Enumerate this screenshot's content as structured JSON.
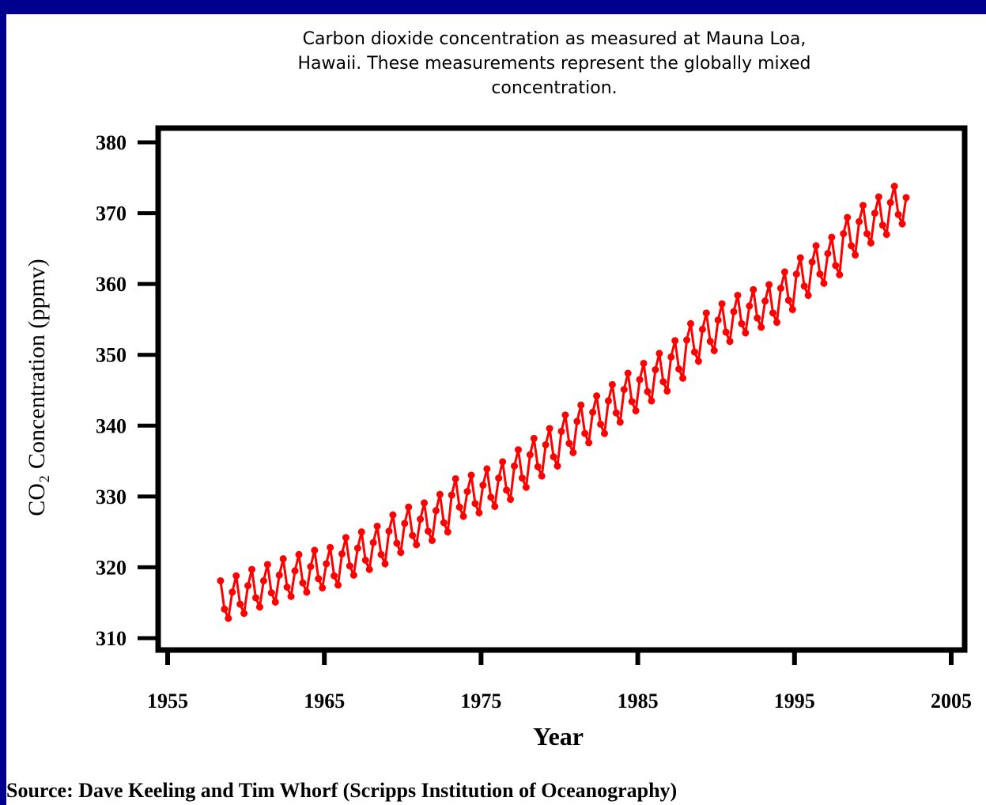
{
  "chart_data": {
    "type": "line",
    "title": "Carbon dioxide concentration as measured at Mauna Loa, Hawaii. These measurements represent the globally mixed concentration.",
    "x_label": "Year",
    "y_label": "CO₂ Concentration (ppmv)",
    "source": "Source: Dave Keeling and Tim Whorf (Scripps Institution of Oceanography)",
    "xlim": [
      1955,
      2005
    ],
    "xticks": [
      1955,
      1965,
      1975,
      1985,
      1995,
      2005
    ],
    "ylim": [
      310,
      380
    ],
    "yticks": [
      310,
      320,
      330,
      340,
      350,
      360,
      370,
      380
    ],
    "series": [
      {
        "color": "#ff0000",
        "x": [
          1958.375,
          1958.625,
          1958.875,
          1959.125,
          1959.375,
          1959.625,
          1959.875,
          1960.125,
          1960.375,
          1960.625,
          1960.875,
          1961.125,
          1961.375,
          1961.625,
          1961.875,
          1962.125,
          1962.375,
          1962.625,
          1962.875,
          1963.125,
          1963.375,
          1963.625,
          1963.875,
          1964.125,
          1964.375,
          1964.625,
          1964.875,
          1965.125,
          1965.375,
          1965.625,
          1965.875,
          1966.125,
          1966.375,
          1966.625,
          1966.875,
          1967.125,
          1967.375,
          1967.625,
          1967.875,
          1968.125,
          1968.375,
          1968.625,
          1968.875,
          1969.125,
          1969.375,
          1969.625,
          1969.875,
          1970.125,
          1970.375,
          1970.625,
          1970.875,
          1971.125,
          1971.375,
          1971.625,
          1971.875,
          1972.125,
          1972.375,
          1972.625,
          1972.875,
          1973.125,
          1973.375,
          1973.625,
          1973.875,
          1974.125,
          1974.375,
          1974.625,
          1974.875,
          1975.125,
          1975.375,
          1975.625,
          1975.875,
          1976.125,
          1976.375,
          1976.625,
          1976.875,
          1977.125,
          1977.375,
          1977.625,
          1977.875,
          1978.125,
          1978.375,
          1978.625,
          1978.875,
          1979.125,
          1979.375,
          1979.625,
          1979.875,
          1980.125,
          1980.375,
          1980.625,
          1980.875,
          1981.125,
          1981.375,
          1981.625,
          1981.875,
          1982.125,
          1982.375,
          1982.625,
          1982.875,
          1983.125,
          1983.375,
          1983.625,
          1983.875,
          1984.125,
          1984.375,
          1984.625,
          1984.875,
          1985.125,
          1985.375,
          1985.625,
          1985.875,
          1986.125,
          1986.375,
          1986.625,
          1986.875,
          1987.125,
          1987.375,
          1987.625,
          1987.875,
          1988.125,
          1988.375,
          1988.625,
          1988.875,
          1989.125,
          1989.375,
          1989.625,
          1989.875,
          1990.125,
          1990.375,
          1990.625,
          1990.875,
          1991.125,
          1991.375,
          1991.625,
          1991.875,
          1992.125,
          1992.375,
          1992.625,
          1992.875,
          1993.125,
          1993.375,
          1993.625,
          1993.875,
          1994.125,
          1994.375,
          1994.625,
          1994.875,
          1995.125,
          1995.375,
          1995.625,
          1995.875,
          1996.125,
          1996.375,
          1996.625,
          1996.875,
          1997.125,
          1997.375,
          1997.625,
          1997.875,
          1998.125,
          1998.375,
          1998.625,
          1998.875,
          1999.125,
          1999.375,
          1999.625,
          1999.875,
          2000.125,
          2000.375,
          2000.625,
          2000.875,
          2001.125,
          2001.375,
          2001.625,
          2001.875,
          2002.125
        ],
        "values": [
          318.1,
          314.1,
          312.8,
          316.5,
          318.8,
          314.8,
          313.5,
          317.4,
          319.7,
          315.7,
          314.4,
          318.1,
          320.4,
          316.4,
          315.1,
          318.9,
          321.2,
          317.2,
          315.9,
          319.5,
          321.8,
          317.8,
          316.5,
          320.1,
          322.4,
          318.4,
          317.1,
          320.5,
          322.8,
          318.8,
          317.5,
          321.9,
          324.2,
          320.2,
          318.9,
          322.7,
          325.0,
          321.0,
          319.7,
          323.5,
          325.8,
          321.8,
          320.5,
          325.1,
          327.4,
          323.4,
          322.1,
          326.2,
          328.5,
          324.5,
          323.2,
          326.8,
          329.1,
          325.1,
          323.8,
          328.0,
          330.3,
          326.3,
          325.0,
          330.2,
          332.5,
          328.5,
          327.2,
          330.7,
          333.0,
          329.0,
          327.7,
          331.6,
          333.9,
          329.9,
          328.6,
          332.6,
          334.9,
          330.9,
          329.6,
          334.3,
          336.6,
          332.6,
          331.3,
          335.9,
          338.2,
          334.2,
          332.9,
          337.3,
          339.6,
          335.6,
          334.3,
          339.2,
          341.5,
          337.5,
          336.2,
          340.6,
          342.9,
          338.9,
          337.6,
          341.9,
          344.2,
          340.2,
          338.9,
          343.5,
          345.8,
          341.8,
          340.5,
          345.1,
          347.4,
          343.4,
          342.1,
          346.5,
          348.8,
          344.8,
          343.5,
          347.9,
          350.2,
          346.2,
          344.9,
          349.7,
          352.0,
          348.0,
          346.7,
          352.1,
          354.4,
          350.4,
          349.1,
          353.6,
          355.9,
          351.9,
          350.6,
          354.9,
          357.2,
          353.2,
          351.9,
          356.1,
          358.4,
          354.4,
          353.1,
          356.9,
          359.2,
          355.2,
          353.9,
          357.6,
          359.9,
          355.9,
          354.6,
          359.4,
          361.7,
          357.7,
          356.4,
          361.4,
          363.7,
          359.7,
          358.4,
          363.1,
          365.4,
          361.4,
          360.1,
          364.3,
          366.6,
          362.6,
          361.3,
          367.1,
          369.4,
          365.4,
          364.1,
          368.8,
          371.1,
          367.1,
          365.8,
          370.0,
          372.3,
          368.3,
          367.0,
          371.5,
          373.8,
          369.8,
          368.5,
          372.2
        ]
      }
    ]
  }
}
